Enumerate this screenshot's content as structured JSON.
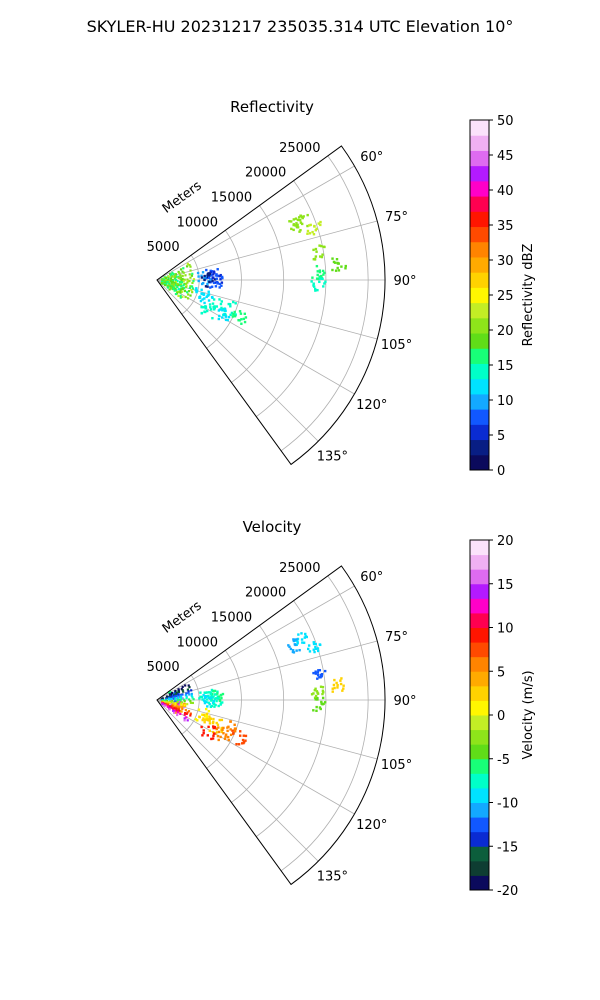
{
  "suptitle": "SKYLER-HU  20231217  235035.314 UTC Elevation 10°",
  "chart_data": [
    {
      "type": "heatmap",
      "subtype": "polar-ppi-sector",
      "title": "Reflectivity",
      "radial_label": "Meters",
      "radial_ticks": [
        5000,
        10000,
        15000,
        20000,
        25000
      ],
      "radial_max": 27000,
      "azimuth_range_deg": [
        54,
        144
      ],
      "azimuth_ticks": [
        "60°",
        "75°",
        "90°",
        "105°",
        "120°",
        "135°"
      ],
      "grid": true,
      "colorbar": {
        "label": "Reflectivity dBZ",
        "min": 0,
        "max": 50,
        "ticks": [
          0,
          5,
          10,
          15,
          20,
          25,
          30,
          35,
          40,
          45,
          50
        ],
        "colors": [
          "#0b0a5c",
          "#081e84",
          "#0a2bd2",
          "#1158ff",
          "#13a9ff",
          "#00e2ff",
          "#00ffc8",
          "#18ff78",
          "#60dd18",
          "#8ee41a",
          "#c3ee25",
          "#fff700",
          "#ffd200",
          "#ffaa00",
          "#ff8400",
          "#ff4a00",
          "#ff1500",
          "#ff0050",
          "#ff00c8",
          "#b31aff",
          "#de6bf0",
          "#f0b0f3",
          "#fbe2fb"
        ]
      },
      "echoes": [
        {
          "az": 67,
          "range": 18500,
          "value": 20
        },
        {
          "az": 68,
          "range": 17500,
          "value": 21
        },
        {
          "az": 71,
          "range": 19500,
          "value": 22
        },
        {
          "az": 80,
          "range": 19500,
          "value": 20
        },
        {
          "az": 85,
          "range": 21500,
          "value": 18
        },
        {
          "az": 87,
          "range": 19000,
          "value": 17
        },
        {
          "az": 91,
          "range": 19000,
          "value": 15
        },
        {
          "az": 84,
          "range": 6500,
          "value": 8
        },
        {
          "az": 86,
          "range": 7000,
          "value": 6
        },
        {
          "az": 87,
          "range": 5500,
          "value": 9
        },
        {
          "az": 89,
          "range": 6000,
          "value": 4
        },
        {
          "az": 90,
          "range": 6800,
          "value": 7
        },
        {
          "az": 106,
          "range": 5500,
          "value": 12
        },
        {
          "az": 110,
          "range": 6000,
          "value": 13
        },
        {
          "az": 113,
          "range": 7500,
          "value": 14
        },
        {
          "az": 111,
          "range": 9000,
          "value": 15
        },
        {
          "az": 114,
          "range": 10500,
          "value": 17
        },
        {
          "az": 117,
          "range": 8500,
          "value": 13
        },
        {
          "az": 122,
          "range": 7000,
          "value": 14
        },
        {
          "az": 94,
          "range": 2000,
          "value": 16
        },
        {
          "az": 100,
          "range": 2500,
          "value": 18
        }
      ]
    },
    {
      "type": "heatmap",
      "subtype": "polar-ppi-sector",
      "title": "Velocity",
      "radial_label": "Meters",
      "radial_ticks": [
        5000,
        10000,
        15000,
        20000,
        25000
      ],
      "radial_max": 27000,
      "azimuth_range_deg": [
        54,
        144
      ],
      "azimuth_ticks": [
        "60°",
        "75°",
        "90°",
        "105°",
        "120°",
        "135°"
      ],
      "grid": true,
      "colorbar": {
        "label": "Velocity (m/s)",
        "min": -20,
        "max": 20,
        "ticks": [
          -20,
          -15,
          -10,
          -5,
          0,
          5,
          10,
          15,
          20
        ],
        "colors": [
          "#0b0a5c",
          "#0e3d32",
          "#0c5e3c",
          "#0a2bd2",
          "#1158ff",
          "#13a9ff",
          "#00e2ff",
          "#00ffc8",
          "#18ff78",
          "#60dd18",
          "#8ee41a",
          "#c3ee25",
          "#fff700",
          "#ffd200",
          "#ffaa00",
          "#ff8400",
          "#ff4a00",
          "#ff1500",
          "#ff0050",
          "#ff00c8",
          "#b31aff",
          "#de6bf0",
          "#f0b0f3",
          "#fbe2fb"
        ]
      },
      "echoes": [
        {
          "az": 67,
          "range": 18500,
          "value": -10
        },
        {
          "az": 68,
          "range": 17500,
          "value": -11
        },
        {
          "az": 71,
          "range": 19500,
          "value": -9
        },
        {
          "az": 80,
          "range": 19500,
          "value": -13
        },
        {
          "az": 85,
          "range": 21500,
          "value": 3
        },
        {
          "az": 87,
          "range": 19000,
          "value": -2
        },
        {
          "az": 91,
          "range": 19000,
          "value": -4
        },
        {
          "az": 84,
          "range": 6500,
          "value": -7
        },
        {
          "az": 86,
          "range": 7000,
          "value": -6
        },
        {
          "az": 87,
          "range": 5500,
          "value": -8
        },
        {
          "az": 89,
          "range": 6000,
          "value": -9
        },
        {
          "az": 90,
          "range": 6800,
          "value": -8
        },
        {
          "az": 106,
          "range": 5500,
          "value": 1
        },
        {
          "az": 110,
          "range": 6000,
          "value": 2
        },
        {
          "az": 113,
          "range": 7500,
          "value": 3
        },
        {
          "az": 111,
          "range": 9000,
          "value": 5
        },
        {
          "az": 114,
          "range": 10500,
          "value": 8
        },
        {
          "az": 117,
          "range": 8500,
          "value": 6
        },
        {
          "az": 122,
          "range": 7000,
          "value": 9
        },
        {
          "az": 75,
          "range": 2000,
          "value": -6
        },
        {
          "az": 85,
          "range": 2200,
          "value": -12
        },
        {
          "az": 95,
          "range": 2000,
          "value": 12
        },
        {
          "az": 100,
          "range": 2200,
          "value": 16
        },
        {
          "az": 108,
          "range": 2500,
          "value": 4
        }
      ]
    }
  ]
}
